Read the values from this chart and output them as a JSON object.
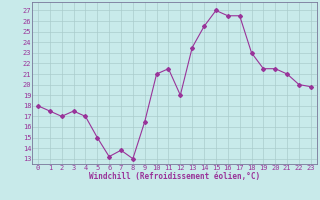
{
  "x": [
    0,
    1,
    2,
    3,
    4,
    5,
    6,
    7,
    8,
    9,
    10,
    11,
    12,
    13,
    14,
    15,
    16,
    17,
    18,
    19,
    20,
    21,
    22,
    23
  ],
  "y": [
    18,
    17.5,
    17,
    17.5,
    17,
    15,
    13.2,
    13.8,
    13,
    16.5,
    21,
    21.5,
    19,
    23.5,
    25.5,
    27,
    26.5,
    26.5,
    23,
    21.5,
    21.5,
    21,
    20,
    19.8
  ],
  "line_color": "#993399",
  "marker": "D",
  "marker_size": 2,
  "bg_color": "#c8eaea",
  "grid_color": "#aacccc",
  "xlabel": "Windchill (Refroidissement éolien,°C)",
  "xlabel_color": "#993399",
  "ylabel_ticks": [
    13,
    14,
    15,
    16,
    17,
    18,
    19,
    20,
    21,
    22,
    23,
    24,
    25,
    26,
    27
  ],
  "ylim": [
    12.5,
    27.8
  ],
  "xlim": [
    -0.5,
    23.5
  ],
  "tick_color": "#993399",
  "font_name": "monospace",
  "tick_fontsize": 5.0,
  "xlabel_fontsize": 5.5
}
